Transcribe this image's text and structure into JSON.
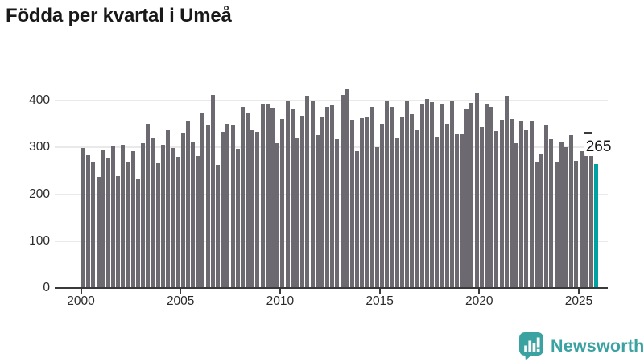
{
  "title": "Födda per kvartal i Umeå",
  "chart_data": {
    "type": "bar",
    "title": "Födda per kvartal i Umeå",
    "categories": [
      "2000 Q1",
      "2000 Q2",
      "2000 Q3",
      "2000 Q4",
      "2001 Q1",
      "2001 Q2",
      "2001 Q3",
      "2001 Q4",
      "2002 Q1",
      "2002 Q2",
      "2002 Q3",
      "2002 Q4",
      "2003 Q1",
      "2003 Q2",
      "2003 Q3",
      "2003 Q4",
      "2004 Q1",
      "2004 Q2",
      "2004 Q3",
      "2004 Q4",
      "2005 Q1",
      "2005 Q2",
      "2005 Q3",
      "2005 Q4",
      "2006 Q1",
      "2006 Q2",
      "2006 Q3",
      "2006 Q4",
      "2007 Q1",
      "2007 Q2",
      "2007 Q3",
      "2007 Q4",
      "2008 Q1",
      "2008 Q2",
      "2008 Q3",
      "2008 Q4",
      "2009 Q1",
      "2009 Q2",
      "2009 Q3",
      "2009 Q4",
      "2010 Q1",
      "2010 Q2",
      "2010 Q3",
      "2010 Q4",
      "2011 Q1",
      "2011 Q2",
      "2011 Q3",
      "2011 Q4",
      "2012 Q1",
      "2012 Q2",
      "2012 Q3",
      "2012 Q4",
      "2013 Q1",
      "2013 Q2",
      "2013 Q3",
      "2013 Q4",
      "2014 Q1",
      "2014 Q2",
      "2014 Q3",
      "2014 Q4",
      "2015 Q1",
      "2015 Q2",
      "2015 Q3",
      "2015 Q4",
      "2016 Q1",
      "2016 Q2",
      "2016 Q3",
      "2016 Q4",
      "2017 Q1",
      "2017 Q2",
      "2017 Q3",
      "2017 Q4",
      "2018 Q1",
      "2018 Q2",
      "2018 Q3",
      "2018 Q4",
      "2019 Q1",
      "2019 Q2",
      "2019 Q3",
      "2019 Q4",
      "2020 Q1",
      "2020 Q2",
      "2020 Q3",
      "2020 Q4",
      "2021 Q1",
      "2021 Q2",
      "2021 Q3",
      "2021 Q4",
      "2022 Q1",
      "2022 Q2",
      "2022 Q3",
      "2022 Q4",
      "2023 Q1",
      "2023 Q2",
      "2023 Q3",
      "2023 Q4",
      "2024 Q1",
      "2024 Q2",
      "2024 Q3",
      "2024 Q4",
      "2025 Q1",
      "2025 Q2",
      "2025 Q3",
      "2025 Q4"
    ],
    "values": [
      299,
      284,
      267,
      237,
      293,
      276,
      302,
      239,
      306,
      269,
      291,
      234,
      309,
      351,
      320,
      266,
      306,
      338,
      298,
      279,
      331,
      355,
      311,
      282,
      373,
      349,
      412,
      262,
      333,
      351,
      346,
      297,
      386,
      375,
      336,
      333,
      394,
      393,
      384,
      309,
      360,
      398,
      381,
      320,
      367,
      410,
      400,
      326,
      365,
      386,
      389,
      317,
      412,
      424,
      358,
      291,
      362,
      366,
      387,
      301,
      351,
      399,
      387,
      321,
      366,
      399,
      370,
      339,
      394,
      403,
      396,
      323,
      393,
      350,
      400,
      330,
      330,
      383,
      395,
      417,
      344,
      394,
      387,
      334,
      358,
      410,
      360,
      309,
      355,
      339,
      357,
      267,
      287,
      349,
      318,
      267,
      311,
      300,
      326,
      272,
      291,
      286,
      286,
      265
    ],
    "bar_color": "#6c6a70",
    "highlight_color": "#00a1a1",
    "highlight_index": 103,
    "annotation": {
      "text": "265",
      "target": "2025 Q4"
    },
    "xticks": [
      "2000",
      "2005",
      "2010",
      "2015",
      "2020",
      "2025"
    ],
    "yticks": [
      0,
      100,
      200,
      300,
      400
    ],
    "ytick_labels": [
      "0",
      "100",
      "200",
      "300",
      "400"
    ],
    "ylim": [
      0,
      430
    ],
    "grid": "horizontal",
    "legend": "none",
    "xlabel": "",
    "ylabel": ""
  },
  "branding": {
    "name": "Newsworthy",
    "icon": "newsworthy-speech-bubble-bar-chart-icon",
    "icon_color": "#3aa3a2",
    "text_color": "#3ba2a2"
  }
}
